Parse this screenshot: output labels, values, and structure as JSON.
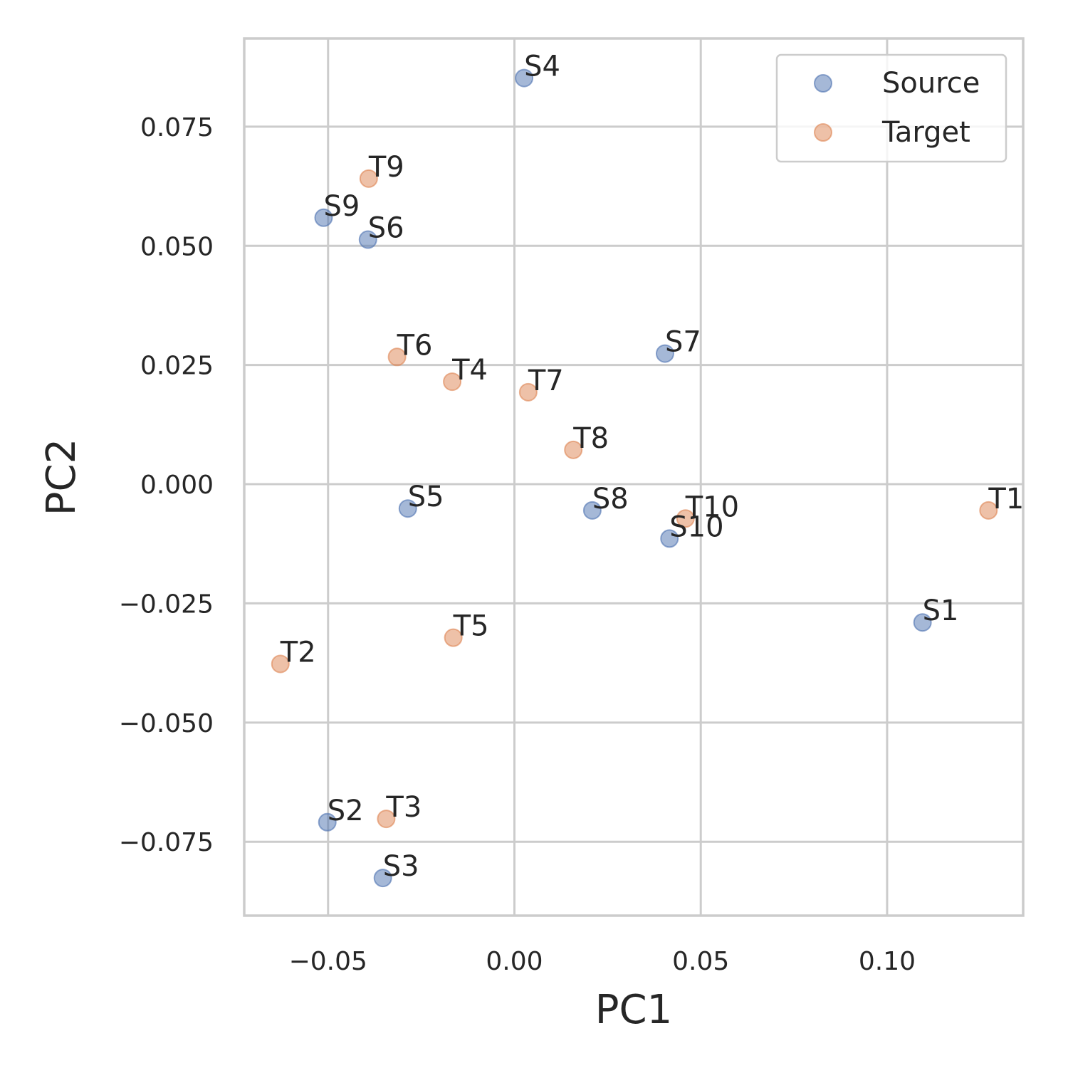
{
  "chart_data": {
    "type": "scatter",
    "title": "",
    "xlabel": "PC1",
    "ylabel": "PC2",
    "xlim": [
      -0.0725,
      0.1365
    ],
    "ylim": [
      -0.0905,
      0.0935
    ],
    "xticks": [
      -0.05,
      0.0,
      0.05,
      0.1
    ],
    "xtick_labels": [
      "−0.05",
      "0.00",
      "0.05",
      "0.10"
    ],
    "yticks": [
      -0.075,
      -0.05,
      -0.025,
      0.0,
      0.025,
      0.05,
      0.075
    ],
    "ytick_labels": [
      "−0.075",
      "−0.050",
      "−0.025",
      "0.000",
      "0.025",
      "0.050",
      "0.075"
    ],
    "grid": true,
    "legend_position": "top-right",
    "series": [
      {
        "name": "Source",
        "color": "#4c72b0",
        "points": [
          {
            "label": "S1",
            "x": 0.1095,
            "y": -0.029
          },
          {
            "label": "S2",
            "x": -0.0502,
            "y": -0.0709
          },
          {
            "label": "S3",
            "x": -0.0353,
            "y": -0.0826
          },
          {
            "label": "S4",
            "x": 0.0026,
            "y": 0.0852
          },
          {
            "label": "S5",
            "x": -0.0286,
            "y": -0.0051
          },
          {
            "label": "S6",
            "x": -0.0393,
            "y": 0.0513
          },
          {
            "label": "S7",
            "x": 0.0404,
            "y": 0.0274
          },
          {
            "label": "S8",
            "x": 0.0209,
            "y": -0.0055
          },
          {
            "label": "S9",
            "x": -0.0512,
            "y": 0.0559
          },
          {
            "label": "S10",
            "x": 0.0416,
            "y": -0.0114
          }
        ]
      },
      {
        "name": "Target",
        "color": "#dd8452",
        "points": [
          {
            "label": "T1",
            "x": 0.1272,
            "y": -0.0055
          },
          {
            "label": "T2",
            "x": -0.0628,
            "y": -0.0377
          },
          {
            "label": "T3",
            "x": -0.0344,
            "y": -0.0702
          },
          {
            "label": "T4",
            "x": -0.0167,
            "y": 0.0215
          },
          {
            "label": "T5",
            "x": -0.0164,
            "y": -0.0322
          },
          {
            "label": "T6",
            "x": -0.0315,
            "y": 0.0267
          },
          {
            "label": "T7",
            "x": 0.0037,
            "y": 0.0193
          },
          {
            "label": "T8",
            "x": 0.0158,
            "y": 0.0072
          },
          {
            "label": "T9",
            "x": -0.0391,
            "y": 0.0641
          },
          {
            "label": "T10",
            "x": 0.0459,
            "y": -0.0072
          }
        ]
      }
    ]
  }
}
